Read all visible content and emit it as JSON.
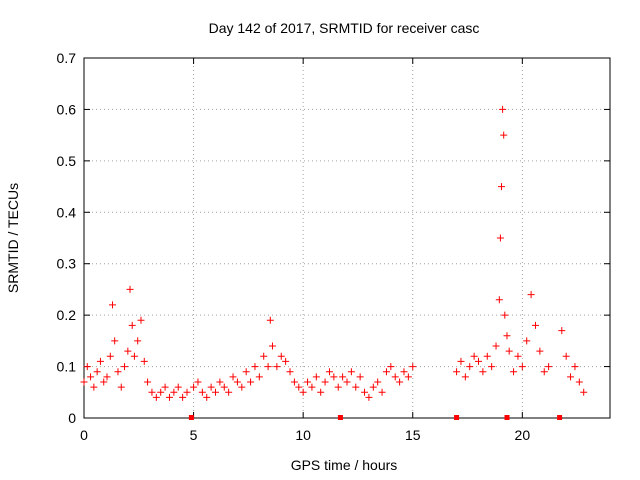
{
  "chart_data": {
    "type": "scatter",
    "title": "Day 142 of 2017, SRMTID for receiver casc",
    "xlabel": "GPS time / hours",
    "ylabel": "SRMTID / TECUs",
    "xlim": [
      0,
      24
    ],
    "ylim": [
      0,
      0.7
    ],
    "x_ticks": [
      0,
      5,
      10,
      15,
      20
    ],
    "y_ticks": [
      0,
      0.1,
      0.2,
      0.3,
      0.4,
      0.5,
      0.6,
      0.7
    ],
    "x_tick_labels": [
      "0",
      "5",
      "10",
      "15",
      "20"
    ],
    "y_tick_labels": [
      "0",
      "0.1",
      "0.2",
      "0.3",
      "0.4",
      "0.5",
      "0.6",
      "0.7"
    ],
    "grid": true,
    "marker": "+",
    "color": "#ff0000",
    "gap_markers_x": [
      4.9,
      11.7,
      17.0,
      19.3,
      21.7
    ],
    "series": [
      {
        "name": "SRMTID",
        "x": [
          0.0,
          0.15,
          0.3,
          0.45,
          0.6,
          0.75,
          0.9,
          1.05,
          1.2,
          1.3,
          1.4,
          1.55,
          1.7,
          1.85,
          2.0,
          2.1,
          2.2,
          2.3,
          2.45,
          2.6,
          2.75,
          2.9,
          3.1,
          3.3,
          3.5,
          3.7,
          3.9,
          4.1,
          4.3,
          4.5,
          4.7,
          5.0,
          5.2,
          5.4,
          5.6,
          5.8,
          6.0,
          6.2,
          6.4,
          6.6,
          6.8,
          7.0,
          7.2,
          7.4,
          7.6,
          7.8,
          8.0,
          8.2,
          8.4,
          8.5,
          8.6,
          8.8,
          9.0,
          9.2,
          9.4,
          9.6,
          9.8,
          10.0,
          10.2,
          10.4,
          10.6,
          10.8,
          11.0,
          11.2,
          11.4,
          11.6,
          11.8,
          12.0,
          12.2,
          12.4,
          12.6,
          12.8,
          13.0,
          13.2,
          13.4,
          13.6,
          13.8,
          14.0,
          14.2,
          14.4,
          14.6,
          14.8,
          15.0,
          17.0,
          17.2,
          17.4,
          17.6,
          17.8,
          18.0,
          18.2,
          18.4,
          18.6,
          18.8,
          18.95,
          19.0,
          19.05,
          19.1,
          19.15,
          19.2,
          19.3,
          19.4,
          19.6,
          19.8,
          20.0,
          20.2,
          20.4,
          20.6,
          20.8,
          21.0,
          21.2,
          21.8,
          22.0,
          22.2,
          22.4,
          22.6,
          22.8
        ],
        "y": [
          0.07,
          0.1,
          0.08,
          0.06,
          0.09,
          0.11,
          0.07,
          0.08,
          0.12,
          0.22,
          0.15,
          0.09,
          0.06,
          0.1,
          0.13,
          0.25,
          0.18,
          0.12,
          0.15,
          0.19,
          0.11,
          0.07,
          0.05,
          0.04,
          0.05,
          0.06,
          0.04,
          0.05,
          0.06,
          0.04,
          0.05,
          0.06,
          0.07,
          0.05,
          0.04,
          0.06,
          0.05,
          0.07,
          0.06,
          0.05,
          0.08,
          0.07,
          0.06,
          0.09,
          0.07,
          0.1,
          0.08,
          0.12,
          0.1,
          0.19,
          0.14,
          0.1,
          0.12,
          0.11,
          0.09,
          0.07,
          0.06,
          0.05,
          0.07,
          0.06,
          0.08,
          0.05,
          0.07,
          0.09,
          0.08,
          0.06,
          0.08,
          0.07,
          0.09,
          0.06,
          0.08,
          0.05,
          0.04,
          0.06,
          0.07,
          0.05,
          0.09,
          0.1,
          0.08,
          0.07,
          0.09,
          0.08,
          0.1,
          0.09,
          0.11,
          0.08,
          0.1,
          0.12,
          0.11,
          0.09,
          0.12,
          0.1,
          0.14,
          0.23,
          0.35,
          0.45,
          0.6,
          0.55,
          0.2,
          0.16,
          0.13,
          0.09,
          0.12,
          0.1,
          0.15,
          0.24,
          0.18,
          0.13,
          0.09,
          0.1,
          0.17,
          0.12,
          0.08,
          0.1,
          0.07,
          0.05
        ]
      }
    ]
  }
}
